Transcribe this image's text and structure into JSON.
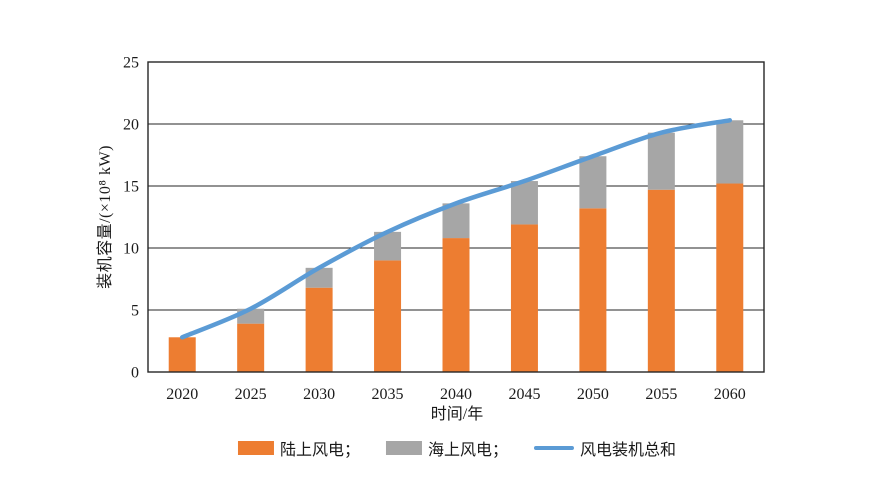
{
  "axes": {
    "x_title": "时间/年",
    "y_title": "装机容量/(×10⁸ kW)"
  },
  "legend": {
    "items": [
      {
        "label": "陆上风电；",
        "swatch": "orange-rect"
      },
      {
        "label": "海上风电；",
        "swatch": "gray-rect"
      },
      {
        "label": "风电装机总和",
        "swatch": "blue-line"
      }
    ]
  },
  "palette": {
    "onshore_orange": "#ED7D31",
    "offshore_gray": "#A6A6A6",
    "total_blue": "#5B9BD5",
    "axis_color": "#262626",
    "text_color": "#1a1a1a"
  },
  "chart_data": {
    "type": "bar",
    "subtype": "stacked-bars-with-smooth-total-line",
    "categories": [
      "2020",
      "2025",
      "2030",
      "2035",
      "2040",
      "2045",
      "2050",
      "2055",
      "2060"
    ],
    "series": [
      {
        "name": "陆上风电",
        "kind": "bar-stack",
        "color": "#ED7D31",
        "values": [
          2.8,
          3.9,
          6.8,
          9.0,
          10.8,
          11.9,
          13.2,
          14.7,
          15.2
        ]
      },
      {
        "name": "海上风电",
        "kind": "bar-stack",
        "color": "#A6A6A6",
        "values": [
          0,
          1.2,
          1.6,
          2.3,
          2.8,
          3.5,
          4.2,
          4.6,
          5.1
        ]
      },
      {
        "name": "风电装机总和",
        "kind": "line",
        "color": "#5B9BD5",
        "values": [
          2.8,
          5.1,
          8.4,
          11.3,
          13.6,
          15.4,
          17.4,
          19.3,
          20.3
        ]
      }
    ],
    "title": "",
    "xlabel": "时间/年",
    "ylabel": "装机容量/(×10⁸ kW)",
    "ylim": [
      0,
      25
    ],
    "yticks": [
      0,
      5,
      10,
      15,
      20,
      25
    ],
    "grid": true,
    "legend_position": "bottom"
  }
}
